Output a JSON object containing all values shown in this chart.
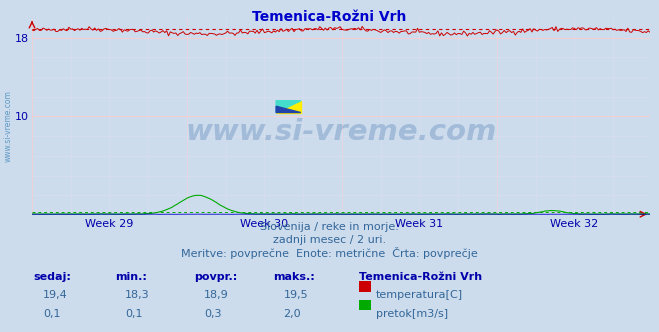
{
  "title": "Temenica-Rožni Vrh",
  "title_color": "#0000cc",
  "bg_color": "#ccdcec",
  "plot_bg_color": "#ccdcec",
  "grid_color_h": "#ffbbbb",
  "grid_color_v": "#ccccdd",
  "tick_color": "#0000aa",
  "ylim": [
    0,
    20
  ],
  "yticks": [
    10,
    18
  ],
  "n_points": 336,
  "temp_color": "#cc0000",
  "flow_color": "#00aa00",
  "height_color": "#0000cc",
  "temp_avg": 18.9,
  "flow_avg": 0.3,
  "watermark": "www.si-vreme.com",
  "watermark_color": "#3366aa",
  "watermark_alpha": 0.28,
  "watermark_fontsize": 21,
  "sidebar_text": "www.si-vreme.com",
  "sidebar_color": "#4488bb",
  "subtitle1": "Slovenija / reke in morje.",
  "subtitle2": "zadnji mesec / 2 uri.",
  "subtitle3": "Meritve: povprečne  Enote: metrične  Črta: povprečje",
  "subtitle_color": "#336699",
  "subtitle_fontsize": 8,
  "table_header_color": "#0000aa",
  "table_value_color": "#336699",
  "table_fontsize": 8,
  "station_name": "Temenica-Rožni Vrh",
  "label_temp": "temperatura[C]",
  "label_flow": "pretok[m3/s]",
  "headers": [
    "sedaj:",
    "min.:",
    "povpr.:",
    "maks.:"
  ],
  "temp_row": [
    "19,4",
    "18,3",
    "18,9",
    "19,5"
  ],
  "flow_row": [
    "0,1",
    "0,1",
    "0,3",
    "2,0"
  ],
  "xlabels": [
    "Week 29",
    "Week 30",
    "Week 31",
    "Week 32"
  ],
  "axis_color": "#cc0000"
}
